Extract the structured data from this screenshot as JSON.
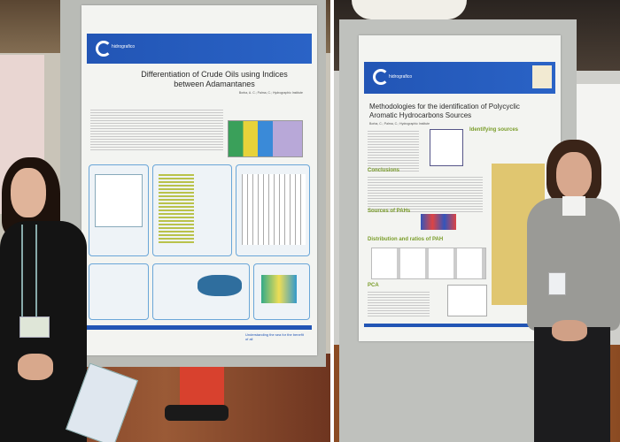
{
  "left_photo": {
    "poster": {
      "logo": "hidrografico",
      "title": "Differentiation of Crude Oils using Indices between Adamantanes",
      "authors": "Borba, A. C.; Palma, C.; Hydrographic Institute",
      "footer": "Understanding the sea for the benefit of all"
    }
  },
  "right_photo": {
    "poster": {
      "logo": "hidrografico",
      "title": "Methodologies for the identification of Polycyclic Aromatic Hydrocarbons Sources",
      "authors": "Borba, C.; Palma, C.; Hydrographic Institute",
      "sections": [
        "Identifying sources",
        "Conclusions",
        "Sources of PAHs",
        "Distribution and ratios of PAH",
        "PCA"
      ]
    }
  },
  "colors": {
    "banner": "#2255b5",
    "floor": "#8a4a2a",
    "sweater": "#9a9a96"
  }
}
